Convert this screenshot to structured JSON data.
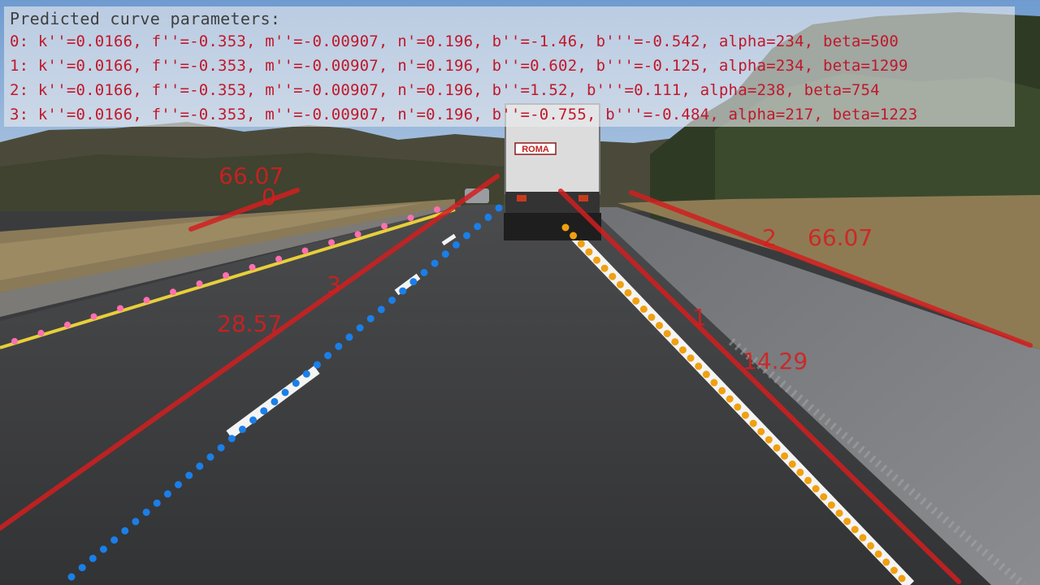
{
  "panel": {
    "title": "Predicted curve parameters:",
    "lines": [
      "0: k''=0.0166, f''=-0.353, m''=-0.00907, n'=0.196, b''=-1.46, b'''=-0.542, alpha=234, beta=500",
      "1: k''=0.0166, f''=-0.353, m''=-0.00907, n'=0.196, b''=0.602, b'''=-0.125, alpha=234, beta=1299",
      "2: k''=0.0166, f''=-0.353, m''=-0.00907, n'=0.196, b''=1.52, b'''=0.111, alpha=238, beta=754",
      "3: k''=0.0166, f''=-0.353, m''=-0.00907, n'=0.196, b''=-0.755, b'''=-0.484, alpha=217, beta=1223"
    ]
  },
  "lanes": [
    {
      "index": "0",
      "value": "66.07"
    },
    {
      "index": "1",
      "value": "14.29"
    },
    {
      "index": "2",
      "value": "66.07"
    },
    {
      "index": "3",
      "value": "28.57"
    }
  ],
  "truck": {
    "logo": "ROMA"
  },
  "colors": {
    "lane_line": "#d21e1e",
    "dots_left": "#ff6fb0",
    "dots_center": "#1a7fe8",
    "dots_right": "#f0a010",
    "param_text": "#c0182b"
  }
}
